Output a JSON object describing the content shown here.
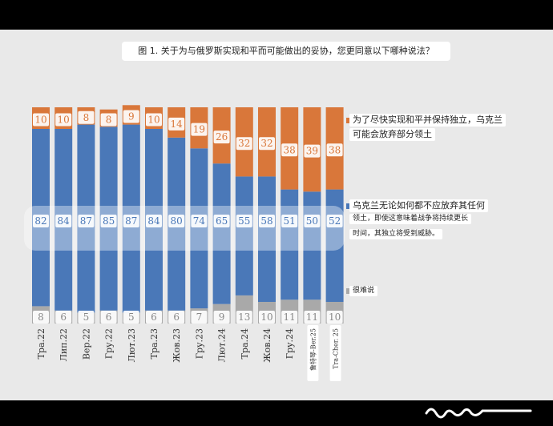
{
  "title": "图 1. 关于为与俄罗斯实现和平而可能做出的妥协，您更同意以下哪种说法？",
  "colors": {
    "compromise": "#D9773A",
    "no_concession": "#4A78B8",
    "hard_to_say": "#A9A9A9",
    "highlight_band": "#FFFFFF"
  },
  "chart_data": {
    "type": "bar",
    "stacked": true,
    "title": "图 1. 关于为与俄罗斯实现和平而可能做出的妥协，您更同意以下哪种说法？",
    "categories": [
      "Тра.22",
      "Лип.22",
      "Вер.22",
      "Гру.22",
      "Лют.23",
      "Тра.23",
      "Жов.23",
      "Гру.23",
      "Лют.24",
      "Тра.24",
      "Жов.24",
      "Гру.24",
      "鲁特琴-Ber.25",
      "Tra-Cher. 25"
    ],
    "series": [
      {
        "name": "很难说",
        "values": [
          8,
          6,
          5,
          6,
          5,
          6,
          6,
          7,
          9,
          13,
          10,
          11,
          11,
          10
        ]
      },
      {
        "name": "乌克兰无论如何都不应放弃其任何领土，即使这意味着战争将持续更长时间，其独立将受到威胁。",
        "values": [
          82,
          84,
          87,
          85,
          87,
          84,
          80,
          74,
          65,
          55,
          58,
          51,
          50,
          52
        ]
      },
      {
        "name": "为了尽快实现和平并保持独立，乌克兰可能会放弃部分领土",
        "values": [
          10,
          10,
          8,
          8,
          9,
          10,
          14,
          19,
          26,
          32,
          32,
          38,
          39,
          38
        ]
      }
    ],
    "ylim": [
      0,
      100
    ],
    "grid": false,
    "legend_position": "right"
  },
  "legend": {
    "compromise_line1": "为了尽快实现和平并保持独立，乌克兰",
    "compromise_line2": "可能会放弃部分领土",
    "no_concession_line1": "乌克兰无论如何都不应放弃其任何",
    "no_concession_line2": "领土，即使这意味着战争将持续更长",
    "no_concession_line3": "时间，其独立将受到威胁。",
    "hard_to_say": "很难说"
  }
}
